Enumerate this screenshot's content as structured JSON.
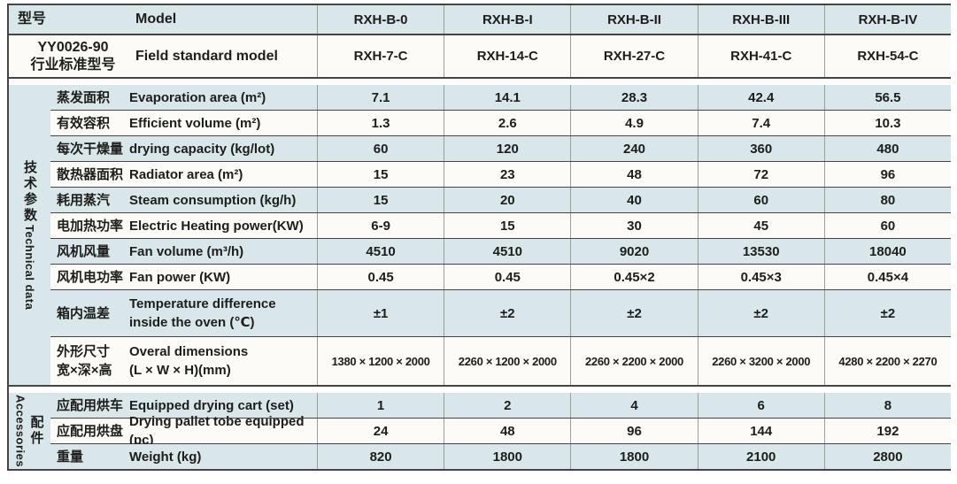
{
  "top": {
    "rows": [
      {
        "zh": "型号",
        "en": "Model",
        "values": [
          "RXH-B-0",
          "RXH-B-I",
          "RXH-B-II",
          "RXH-B-III",
          "RXH-B-IV"
        ]
      },
      {
        "zh": "YY0026-90\n行业标准型号",
        "en": "Field standard model",
        "values": [
          "RXH-7-C",
          "RXH-14-C",
          "RXH-27-C",
          "RXH-41-C",
          "RXH-54-C"
        ]
      }
    ]
  },
  "groups": [
    {
      "label_zh": "技术参数",
      "label_en": "Technical data",
      "rows": [
        {
          "zh": "蒸发面积",
          "en": "Evaporation area (m²)",
          "values": [
            "7.1",
            "14.1",
            "28.3",
            "42.4",
            "56.5"
          ]
        },
        {
          "zh": "有效容积",
          "en": "Efficient volume (m²)",
          "values": [
            "1.3",
            "2.6",
            "4.9",
            "7.4",
            "10.3"
          ]
        },
        {
          "zh": "每次干燥量",
          "en": "drying capacity (kg/lot)",
          "values": [
            "60",
            "120",
            "240",
            "360",
            "480"
          ]
        },
        {
          "zh": "散热器面积",
          "en": "Radiator area (m²)",
          "values": [
            "15",
            "23",
            "48",
            "72",
            "96"
          ]
        },
        {
          "zh": "耗用蒸汽",
          "en": "Steam consumption (kg/h)",
          "values": [
            "15",
            "20",
            "40",
            "60",
            "80"
          ]
        },
        {
          "zh": "电加热功率",
          "en": "Electric Heating power(KW)",
          "values": [
            "6-9",
            "15",
            "30",
            "45",
            "60"
          ]
        },
        {
          "zh": "风机风量",
          "en": "Fan volume (m³/h)",
          "values": [
            "4510",
            "4510",
            "9020",
            "13530",
            "18040"
          ]
        },
        {
          "zh": "风机电功率",
          "en": "Fan power (KW)",
          "values": [
            "0.45",
            "0.45",
            "0.45×2",
            "0.45×3",
            "0.45×4"
          ]
        },
        {
          "zh": "箱内温差",
          "en": "Temperature difference\ninside the oven (℃)",
          "values": [
            "±1",
            "±2",
            "±2",
            "±2",
            "±2"
          ]
        },
        {
          "zh": "外形尺寸\n宽×深×高",
          "en": "Overal dimensions\n(L × W × H)(mm)",
          "values": [
            "1380 × 1200 × 2000",
            "2260 × 1200 × 2000",
            "2260 × 2200 × 2000",
            "2260 × 3200 × 2000",
            "4280 × 2200 × 2270"
          ]
        }
      ]
    },
    {
      "label_zh": "配件",
      "label_en": "Accessories",
      "rows": [
        {
          "zh": "应配用烘车",
          "en": "Equipped drying cart (set)",
          "values": [
            "1",
            "2",
            "4",
            "6",
            "8"
          ]
        },
        {
          "zh": "应配用烘盘",
          "en": "Drying pallet tobe equipped (pc)",
          "values": [
            "24",
            "48",
            "96",
            "144",
            "192"
          ]
        },
        {
          "zh": "重量",
          "en": "Weight (kg)",
          "values": [
            "820",
            "1800",
            "1800",
            "2100",
            "2800"
          ]
        }
      ]
    }
  ],
  "colors": {
    "row_blue": "#d9e7ea",
    "row_white": "#fcfbf7",
    "line_dark": "#454543",
    "line_light": "#9c9e9e"
  }
}
